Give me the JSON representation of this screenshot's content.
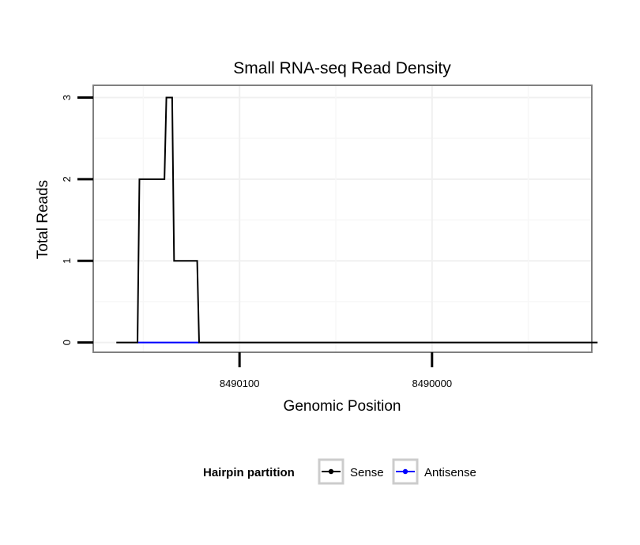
{
  "chart_data": {
    "type": "line",
    "title": "Small RNA-seq Read Density",
    "xlabel": "Genomic Position",
    "ylabel": "Total Reads",
    "x_reversed": true,
    "xlim": [
      8490176,
      8489917
    ],
    "ylim": [
      -0.12,
      3.15
    ],
    "x_ticks": [
      8490100,
      8490000
    ],
    "x_tick_labels": [
      "8490100",
      "8490000"
    ],
    "y_ticks": [
      0,
      1,
      2,
      3
    ],
    "y_tick_labels": [
      "0",
      "1",
      "2",
      "3"
    ],
    "grid": true,
    "legend": {
      "title": "Hairpin partition",
      "placement": "bottom",
      "entries": [
        "Sense",
        "Antisense"
      ]
    },
    "series": [
      {
        "name": "Sense",
        "color": "#000000",
        "x": [
          8490164,
          8490153,
          8490152,
          8490139,
          8490138,
          8490137,
          8490136,
          8490135,
          8490134,
          8490122,
          8490121,
          8489914
        ],
        "y": [
          0,
          0,
          2,
          2,
          3,
          3,
          3,
          3,
          1,
          1,
          0,
          0
        ]
      },
      {
        "name": "Antisense",
        "color": "#0000ff",
        "x": [
          8490153,
          8490121
        ],
        "y": [
          0,
          0
        ]
      }
    ]
  }
}
